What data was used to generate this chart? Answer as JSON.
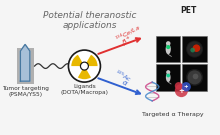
{
  "title": "Potential theranostic\napplications",
  "title_fontsize": 6.5,
  "title_color": "#666666",
  "bg_color": "#f5f5f5",
  "pet_label": "PET",
  "tumor_label": "Tumor targeting\n(PSMA/YS5)",
  "ligands_label": "Ligands\n(DOTA/Macropa)",
  "ce_la_label": "^{134}Ce/La",
  "beta_label": "β+",
  "ac_label": "^{225}Ac",
  "alpha_label": "α",
  "alpha_therapy_label": "Targeted α Therapy",
  "arrow_red": "#e03030",
  "arrow_blue": "#3060d0",
  "nuclear_yellow": "#e8b800",
  "nuclear_black": "#1a1a1a",
  "antibody_fill": "#a8c0d8",
  "antibody_edge": "#4878a0",
  "gray_fill": "#b0b0b0"
}
